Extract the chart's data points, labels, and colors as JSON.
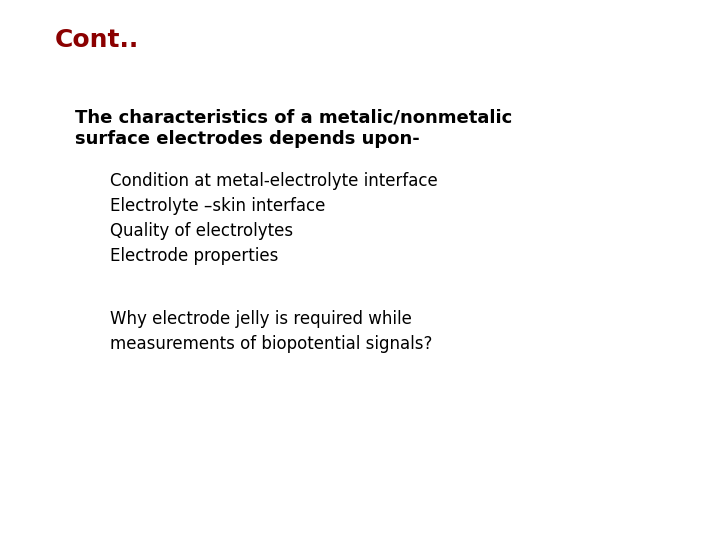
{
  "background_color": "#ffffff",
  "title": "Cont..",
  "title_color": "#8b0000",
  "title_fontsize": 18,
  "main_bullet_color": "#1f3864",
  "sub_bullet_color": "#cc0000",
  "main_bullet_text_line1": "The characteristics of a metalic/nonmetalic",
  "main_bullet_text_line2": "surface electrodes depends upon-",
  "main_bullet_fontsize": 13,
  "sub_bullets": [
    "Condition at metal-electrolyte interface",
    "Electrolyte –skin interface",
    "Quality of electrolytes",
    "Electrode properties"
  ],
  "sub_bullet_fontsize": 12,
  "question_line1": "Why electrode jelly is required while",
  "question_line2": "measurements of biopotential signals?",
  "question_fontsize": 12
}
